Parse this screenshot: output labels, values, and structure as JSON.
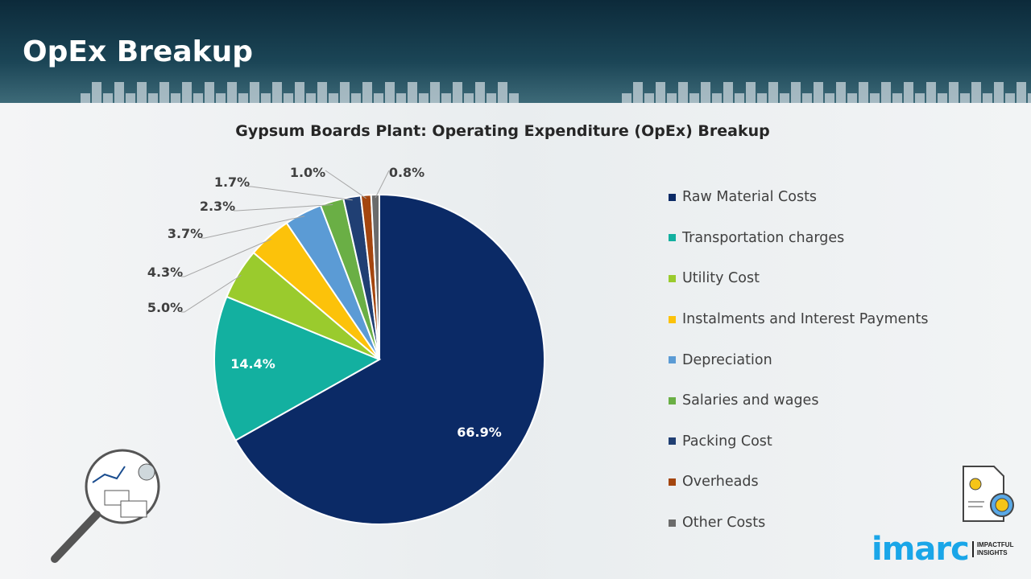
{
  "header": {
    "title": "OpEx Breakup"
  },
  "chart_data": {
    "type": "pie",
    "title": "Gypsum Boards Plant: Operating Expenditure (OpEx) Breakup",
    "categories": [
      "Raw Material Costs",
      "Transportation charges",
      "Utility Cost",
      "Instalments and Interest Payments",
      "Depreciation",
      "Salaries and wages",
      "Packing Cost",
      "Overheads",
      "Other Costs"
    ],
    "values": [
      66.9,
      14.4,
      5.0,
      4.3,
      3.7,
      2.3,
      1.7,
      1.0,
      0.8
    ],
    "labels": [
      "66.9%",
      "14.4%",
      "5.0%",
      "4.3%",
      "3.7%",
      "2.3%",
      "1.7%",
      "1.0%",
      "0.8%"
    ],
    "colors": [
      "#0b2a66",
      "#13b0a0",
      "#9acb2d",
      "#fcc20a",
      "#5b9bd5",
      "#6aaf45",
      "#203f73",
      "#a4460f",
      "#6b6b6b"
    ],
    "start": "top",
    "direction": "clockwise",
    "legend_position": "right"
  },
  "logo": {
    "brand": "imarc",
    "tagline": [
      "IMPACTFUL",
      "INSIGHTS"
    ]
  },
  "icons": [
    "analytics-magnifier-icon",
    "cost-document-gear-icon"
  ]
}
